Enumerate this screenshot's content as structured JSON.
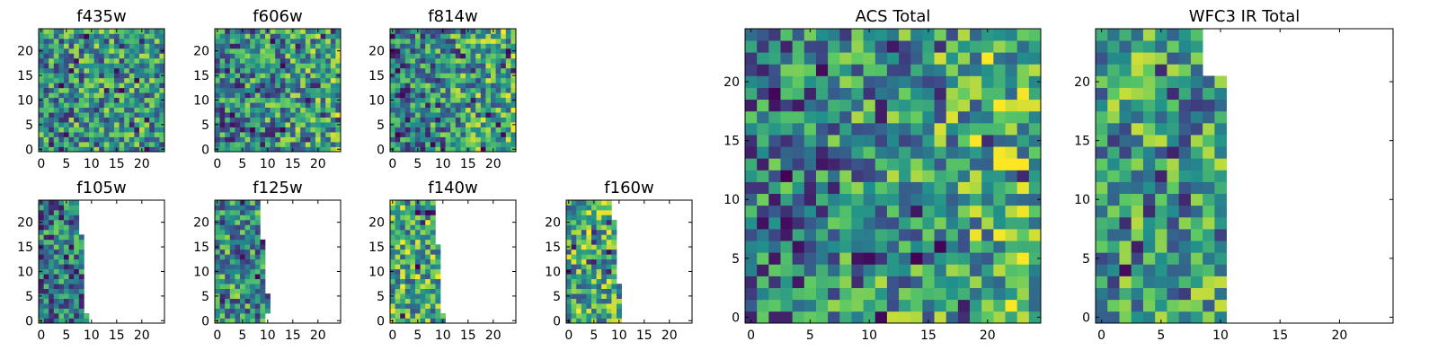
{
  "figure": {
    "colormap": "viridis",
    "colormap_stops": [
      "#440154",
      "#3b528b",
      "#21908c",
      "#5dc963",
      "#fde725"
    ]
  },
  "chart_data": [
    {
      "type": "heatmap",
      "title": "f435w",
      "xticks": [
        0,
        5,
        10,
        15,
        20
      ],
      "yticks": [
        0,
        5,
        10,
        15,
        20
      ],
      "xlim": [
        -0.5,
        24.5
      ],
      "ylim": [
        -0.5,
        24.5
      ],
      "grid": false,
      "grid_size": [
        25,
        25
      ],
      "column_extent_by_row": "full",
      "value_range": [
        0,
        1
      ],
      "mean_level": 0.52,
      "right_gradient": 0.05
    },
    {
      "type": "heatmap",
      "title": "f606w",
      "xticks": [
        0,
        5,
        10,
        15,
        20
      ],
      "yticks": [
        0,
        5,
        10,
        15,
        20
      ],
      "xlim": [
        -0.5,
        24.5
      ],
      "ylim": [
        -0.5,
        24.5
      ],
      "grid": false,
      "grid_size": [
        25,
        25
      ],
      "column_extent_by_row": "full",
      "value_range": [
        0,
        1
      ],
      "mean_level": 0.5,
      "right_gradient": 0.18
    },
    {
      "type": "heatmap",
      "title": "f814w",
      "xticks": [
        0,
        5,
        10,
        15,
        20
      ],
      "yticks": [
        0,
        5,
        10,
        15,
        20
      ],
      "xlim": [
        -0.5,
        24.5
      ],
      "ylim": [
        -0.5,
        24.5
      ],
      "grid": false,
      "grid_size": [
        25,
        25
      ],
      "column_extent_by_row": "full",
      "value_range": [
        0,
        1
      ],
      "mean_level": 0.5,
      "right_gradient": 0.28
    },
    {
      "type": "heatmap",
      "title": "f105w",
      "xticks": [
        0,
        5,
        10,
        15,
        20
      ],
      "yticks": [
        0,
        5,
        10,
        15,
        20
      ],
      "xlim": [
        -0.5,
        24.5
      ],
      "ylim": [
        -0.5,
        24.5
      ],
      "grid": false,
      "grid_size": [
        25,
        25
      ],
      "column_extent_by_row": [
        10,
        10,
        9,
        9,
        9,
        9,
        9,
        9,
        9,
        9,
        9,
        9,
        9,
        9,
        9,
        9,
        9,
        9,
        8,
        8,
        8,
        8,
        8,
        8,
        8
      ],
      "value_range": [
        0,
        1
      ],
      "mean_level": 0.42,
      "right_gradient": 0.0
    },
    {
      "type": "heatmap",
      "title": "f125w",
      "xticks": [
        0,
        5,
        10,
        15,
        20
      ],
      "yticks": [
        0,
        5,
        10,
        15,
        20
      ],
      "xlim": [
        -0.5,
        24.5
      ],
      "ylim": [
        -0.5,
        24.5
      ],
      "grid": false,
      "grid_size": [
        25,
        25
      ],
      "column_extent_by_row": [
        10,
        10,
        11,
        11,
        11,
        11,
        10,
        10,
        10,
        10,
        10,
        10,
        10,
        10,
        10,
        10,
        10,
        9,
        9,
        9,
        9,
        9,
        9,
        9,
        9
      ],
      "value_range": [
        0,
        1
      ],
      "mean_level": 0.5,
      "right_gradient": 0.0
    },
    {
      "type": "heatmap",
      "title": "f140w",
      "xticks": [
        0,
        5,
        10,
        15,
        20
      ],
      "yticks": [
        0,
        5,
        10,
        15,
        20
      ],
      "xlim": [
        -0.5,
        24.5
      ],
      "ylim": [
        -0.5,
        24.5
      ],
      "grid": false,
      "grid_size": [
        25,
        25
      ],
      "column_extent_by_row": [
        11,
        11,
        10,
        10,
        10,
        10,
        10,
        10,
        10,
        10,
        10,
        10,
        10,
        10,
        10,
        10,
        9,
        9,
        9,
        9,
        9,
        9,
        9,
        9,
        9
      ],
      "value_range": [
        0,
        1
      ],
      "mean_level": 0.62,
      "right_gradient": 0.0
    },
    {
      "type": "heatmap",
      "title": "f160w",
      "xticks": [
        0,
        5,
        10,
        15,
        20
      ],
      "yticks": [
        0,
        5,
        10,
        15,
        20
      ],
      "xlim": [
        -0.5,
        24.5
      ],
      "ylim": [
        -0.5,
        24.5
      ],
      "grid": false,
      "grid_size": [
        25,
        25
      ],
      "column_extent_by_row": [
        11,
        11,
        11,
        11,
        11,
        11,
        11,
        11,
        10,
        10,
        10,
        10,
        10,
        10,
        10,
        10,
        10,
        10,
        10,
        10,
        10,
        9,
        9,
        9,
        9
      ],
      "value_range": [
        0,
        1
      ],
      "mean_level": 0.63,
      "right_gradient": 0.0
    },
    {
      "type": "heatmap",
      "title": "ACS Total",
      "xticks": [
        0,
        5,
        10,
        15,
        20
      ],
      "yticks": [
        0,
        5,
        10,
        15,
        20
      ],
      "xlim": [
        -0.5,
        24.5
      ],
      "ylim": [
        -0.5,
        24.5
      ],
      "grid": false,
      "grid_size": [
        25,
        25
      ],
      "column_extent_by_row": "full",
      "value_range": [
        0,
        1
      ],
      "mean_level": 0.52,
      "right_gradient": 0.3
    },
    {
      "type": "heatmap",
      "title": "WFC3 IR Total",
      "xticks": [
        0,
        5,
        10,
        15,
        20
      ],
      "yticks": [
        0,
        5,
        10,
        15,
        20
      ],
      "xlim": [
        -0.5,
        24.5
      ],
      "ylim": [
        -0.5,
        24.5
      ],
      "grid": false,
      "grid_size": [
        25,
        25
      ],
      "column_extent_by_row": [
        11,
        11,
        11,
        11,
        11,
        11,
        11,
        11,
        11,
        11,
        11,
        11,
        11,
        11,
        11,
        11,
        11,
        11,
        11,
        11,
        11,
        9,
        9,
        9,
        9
      ],
      "value_range": [
        0,
        1
      ],
      "mean_level": 0.55,
      "right_gradient": 0.0
    }
  ]
}
